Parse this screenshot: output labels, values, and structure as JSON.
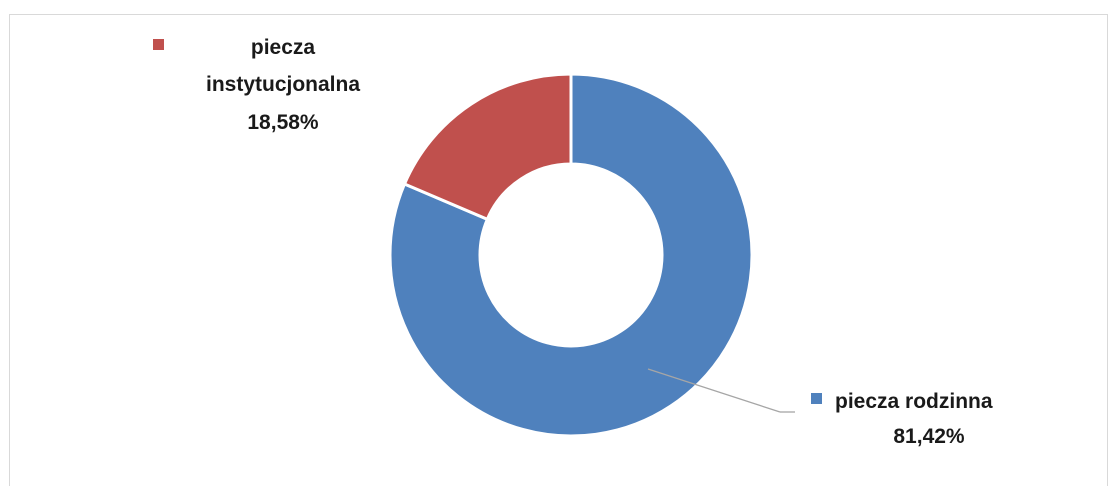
{
  "chart_data": {
    "type": "pie",
    "variant": "doughnut",
    "title": "",
    "categories": [
      "piecza rodzinna",
      "piecza instytucjonalna"
    ],
    "values": [
      81.42,
      18.58
    ],
    "value_labels": [
      "81,42%",
      "18,58%"
    ],
    "colors": [
      "#4f81bd",
      "#c0504d"
    ],
    "legend": "none",
    "labels": [
      {
        "series_lines": [
          "piecza rodzinna"
        ],
        "value_text": "81,42%",
        "color": "#4f81bd"
      },
      {
        "series_lines": [
          "piecza",
          "instytucjonalna"
        ],
        "value_text": "18,58%",
        "color": "#c0504d"
      }
    ]
  }
}
